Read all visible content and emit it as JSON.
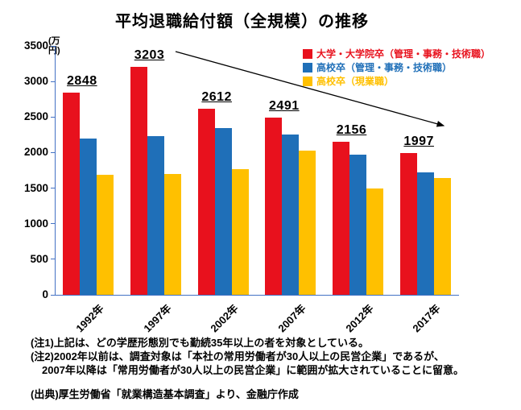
{
  "title": "平均退職給付額（全規模）の推移",
  "chart_data": {
    "type": "bar",
    "title": "平均退職給付額（全規模）の推移",
    "categories": [
      "1992年",
      "1997年",
      "2002年",
      "2007年",
      "2012年",
      "2017年"
    ],
    "series": [
      {
        "key": "univ-grad",
        "name": "大学・大学院卒（管理・事務・技術職）",
        "color": "#e8111d",
        "values": [
          2848,
          3203,
          2612,
          2491,
          2156,
          1997
        ],
        "data_labels": [
          "2848",
          "3203",
          "2612",
          "2491",
          "2156",
          "1997"
        ]
      },
      {
        "key": "highschool-admin",
        "name": "高校卒（管理・事務・技術職）",
        "color": "#1f6fb8",
        "values": [
          2200,
          2230,
          2350,
          2250,
          1970,
          1720
        ]
      },
      {
        "key": "highschool-field",
        "name": "高校卒（現業職）",
        "color": "#ffc000",
        "values": [
          1690,
          1700,
          1770,
          2030,
          1500,
          1640
        ]
      }
    ],
    "xlabel": "",
    "ylabel": "(万円)",
    "ylim": [
      0,
      3500
    ],
    "ytick_step": 500,
    "grid": false,
    "legend_position": "top-right",
    "annotations": [
      {
        "type": "arrow",
        "from": "3203（1997年）",
        "to": "1997（2017年）"
      }
    ]
  },
  "notes": [
    "(注1)上記は、どの学歴形態別でも勤続35年以上の者を対象としている。",
    "(注2)2002年以前は、調査対象は「本社の常用労働者が30人以上の民営企業」であるが、",
    "2007年以降は「常用労働者が30人以上の民営企業」に範囲が拡大されていることに留意。"
  ],
  "source": "(出典)厚生労働省「就業構造基本調査」より、金融庁作成"
}
